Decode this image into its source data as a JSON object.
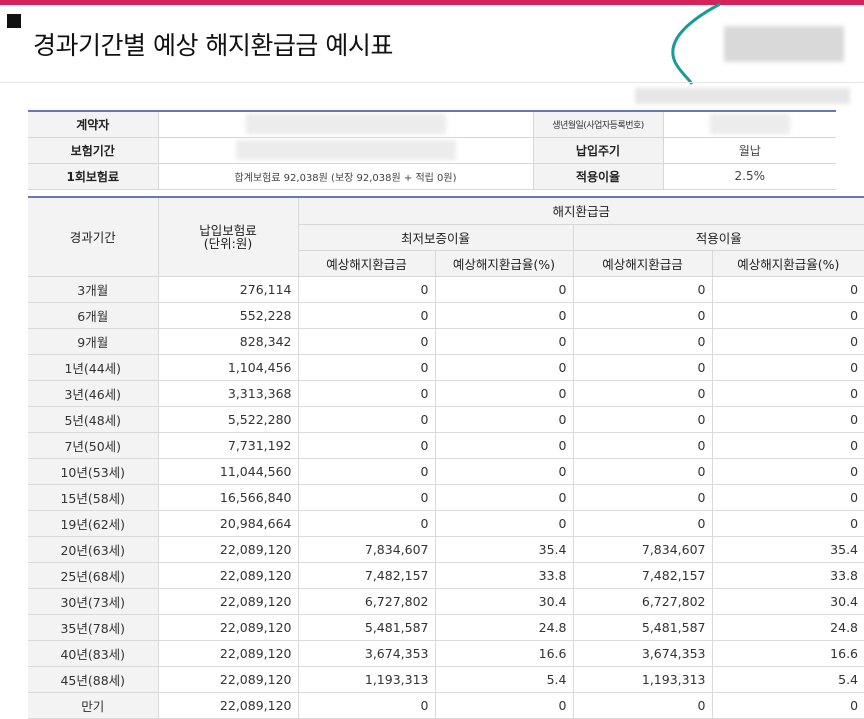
{
  "page": {
    "title": "경과기간별 예상 해지환급금 예시표"
  },
  "colors": {
    "accent_bar": "#d6225a",
    "table_border": "#6878b4",
    "header_bg": "#f3f3f3",
    "teal_curve": "#1a9a96"
  },
  "info": {
    "contractor_label": "계약자",
    "birth_label": "생년월일(사업자등록번호)",
    "insurance_period_label": "보험기간",
    "payment_cycle_label": "납입주기",
    "payment_cycle_value": "월납",
    "premium_label": "1회보험료",
    "premium_value": "합계보험료 92,038원 (보장 92,038원 + 적립 0원)",
    "rate_label": "적용이율",
    "rate_value": "2.5%"
  },
  "table": {
    "headers": {
      "period": "경과기간",
      "paid_premium": "납입보험료\n(단위:원)",
      "refund": "해지환급금",
      "min_guarantee": "최저보증이율",
      "applied_rate": "적용이율",
      "amount": "예상해지환급금",
      "ratio": "예상해지환급율(%)"
    },
    "rows": [
      {
        "period": "3개월",
        "paid": "276,114",
        "min_amount": "0",
        "min_ratio": "0",
        "app_amount": "0",
        "app_ratio": "0"
      },
      {
        "period": "6개월",
        "paid": "552,228",
        "min_amount": "0",
        "min_ratio": "0",
        "app_amount": "0",
        "app_ratio": "0"
      },
      {
        "period": "9개월",
        "paid": "828,342",
        "min_amount": "0",
        "min_ratio": "0",
        "app_amount": "0",
        "app_ratio": "0"
      },
      {
        "period": "1년(44세)",
        "paid": "1,104,456",
        "min_amount": "0",
        "min_ratio": "0",
        "app_amount": "0",
        "app_ratio": "0"
      },
      {
        "period": "3년(46세)",
        "paid": "3,313,368",
        "min_amount": "0",
        "min_ratio": "0",
        "app_amount": "0",
        "app_ratio": "0"
      },
      {
        "period": "5년(48세)",
        "paid": "5,522,280",
        "min_amount": "0",
        "min_ratio": "0",
        "app_amount": "0",
        "app_ratio": "0"
      },
      {
        "period": "7년(50세)",
        "paid": "7,731,192",
        "min_amount": "0",
        "min_ratio": "0",
        "app_amount": "0",
        "app_ratio": "0"
      },
      {
        "period": "10년(53세)",
        "paid": "11,044,560",
        "min_amount": "0",
        "min_ratio": "0",
        "app_amount": "0",
        "app_ratio": "0"
      },
      {
        "period": "15년(58세)",
        "paid": "16,566,840",
        "min_amount": "0",
        "min_ratio": "0",
        "app_amount": "0",
        "app_ratio": "0"
      },
      {
        "period": "19년(62세)",
        "paid": "20,984,664",
        "min_amount": "0",
        "min_ratio": "0",
        "app_amount": "0",
        "app_ratio": "0"
      },
      {
        "period": "20년(63세)",
        "paid": "22,089,120",
        "min_amount": "7,834,607",
        "min_ratio": "35.4",
        "app_amount": "7,834,607",
        "app_ratio": "35.4"
      },
      {
        "period": "25년(68세)",
        "paid": "22,089,120",
        "min_amount": "7,482,157",
        "min_ratio": "33.8",
        "app_amount": "7,482,157",
        "app_ratio": "33.8"
      },
      {
        "period": "30년(73세)",
        "paid": "22,089,120",
        "min_amount": "6,727,802",
        "min_ratio": "30.4",
        "app_amount": "6,727,802",
        "app_ratio": "30.4"
      },
      {
        "period": "35년(78세)",
        "paid": "22,089,120",
        "min_amount": "5,481,587",
        "min_ratio": "24.8",
        "app_amount": "5,481,587",
        "app_ratio": "24.8"
      },
      {
        "period": "40년(83세)",
        "paid": "22,089,120",
        "min_amount": "3,674,353",
        "min_ratio": "16.6",
        "app_amount": "3,674,353",
        "app_ratio": "16.6"
      },
      {
        "period": "45년(88세)",
        "paid": "22,089,120",
        "min_amount": "1,193,313",
        "min_ratio": "5.4",
        "app_amount": "1,193,313",
        "app_ratio": "5.4"
      },
      {
        "period": "만기",
        "paid": "22,089,120",
        "min_amount": "0",
        "min_ratio": "0",
        "app_amount": "0",
        "app_ratio": "0"
      }
    ]
  }
}
